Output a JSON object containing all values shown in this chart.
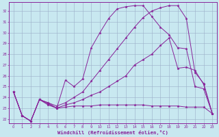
{
  "xlabel": "Windchill (Refroidissement éolien,°C)",
  "background_color": "#c8e8f0",
  "grid_color": "#9baec8",
  "line_color": "#882299",
  "xlim_min": -0.5,
  "xlim_max": 23.5,
  "ylim_min": 21.6,
  "ylim_max": 32.8,
  "yticks": [
    22,
    23,
    24,
    25,
    26,
    27,
    28,
    29,
    30,
    31,
    32
  ],
  "xticks": [
    0,
    1,
    2,
    3,
    4,
    5,
    6,
    7,
    8,
    9,
    10,
    11,
    12,
    13,
    14,
    15,
    16,
    17,
    18,
    19,
    20,
    21,
    22,
    23
  ],
  "line1_x": [
    0,
    1,
    2,
    3,
    4,
    5,
    6,
    7,
    8,
    9,
    10,
    11,
    12,
    13,
    14,
    15,
    16,
    17,
    18,
    19,
    20,
    21,
    22,
    23
  ],
  "line1_y": [
    24.5,
    22.3,
    21.8,
    23.8,
    23.4,
    23.0,
    25.6,
    25.0,
    25.7,
    28.6,
    30.0,
    31.3,
    32.2,
    32.4,
    32.5,
    32.5,
    31.5,
    30.5,
    29.8,
    28.6,
    28.5,
    25.0,
    24.8,
    22.5
  ],
  "line2_x": [
    0,
    1,
    2,
    3,
    4,
    5,
    6,
    7,
    8,
    9,
    10,
    11,
    12,
    13,
    14,
    15,
    16,
    17,
    18,
    19,
    20,
    21,
    22,
    23
  ],
  "line2_y": [
    24.5,
    22.3,
    21.8,
    23.8,
    23.3,
    23.0,
    23.1,
    23.2,
    23.2,
    23.2,
    23.3,
    23.3,
    23.3,
    23.3,
    23.3,
    23.3,
    23.2,
    23.2,
    23.2,
    23.2,
    23.1,
    23.1,
    23.1,
    22.5
  ],
  "line3_x": [
    0,
    1,
    2,
    3,
    4,
    5,
    6,
    7,
    8,
    9,
    10,
    11,
    12,
    13,
    14,
    15,
    16,
    17,
    18,
    19,
    20,
    21,
    22,
    23
  ],
  "line3_y": [
    24.5,
    22.3,
    21.8,
    23.8,
    23.5,
    23.2,
    23.5,
    24.0,
    24.5,
    25.5,
    26.5,
    27.5,
    28.5,
    29.5,
    30.5,
    31.4,
    32.0,
    32.3,
    32.5,
    32.5,
    31.3,
    26.3,
    25.3,
    22.5
  ],
  "line4_x": [
    0,
    1,
    2,
    3,
    4,
    5,
    6,
    7,
    8,
    9,
    10,
    11,
    12,
    13,
    14,
    15,
    16,
    17,
    18,
    19,
    20,
    21,
    22,
    23
  ],
  "line4_y": [
    24.5,
    22.3,
    21.8,
    23.8,
    23.5,
    23.0,
    23.3,
    23.5,
    23.8,
    24.2,
    24.5,
    25.0,
    25.5,
    26.0,
    27.0,
    27.5,
    28.0,
    28.8,
    29.5,
    26.7,
    26.8,
    26.5,
    25.2,
    22.5
  ]
}
